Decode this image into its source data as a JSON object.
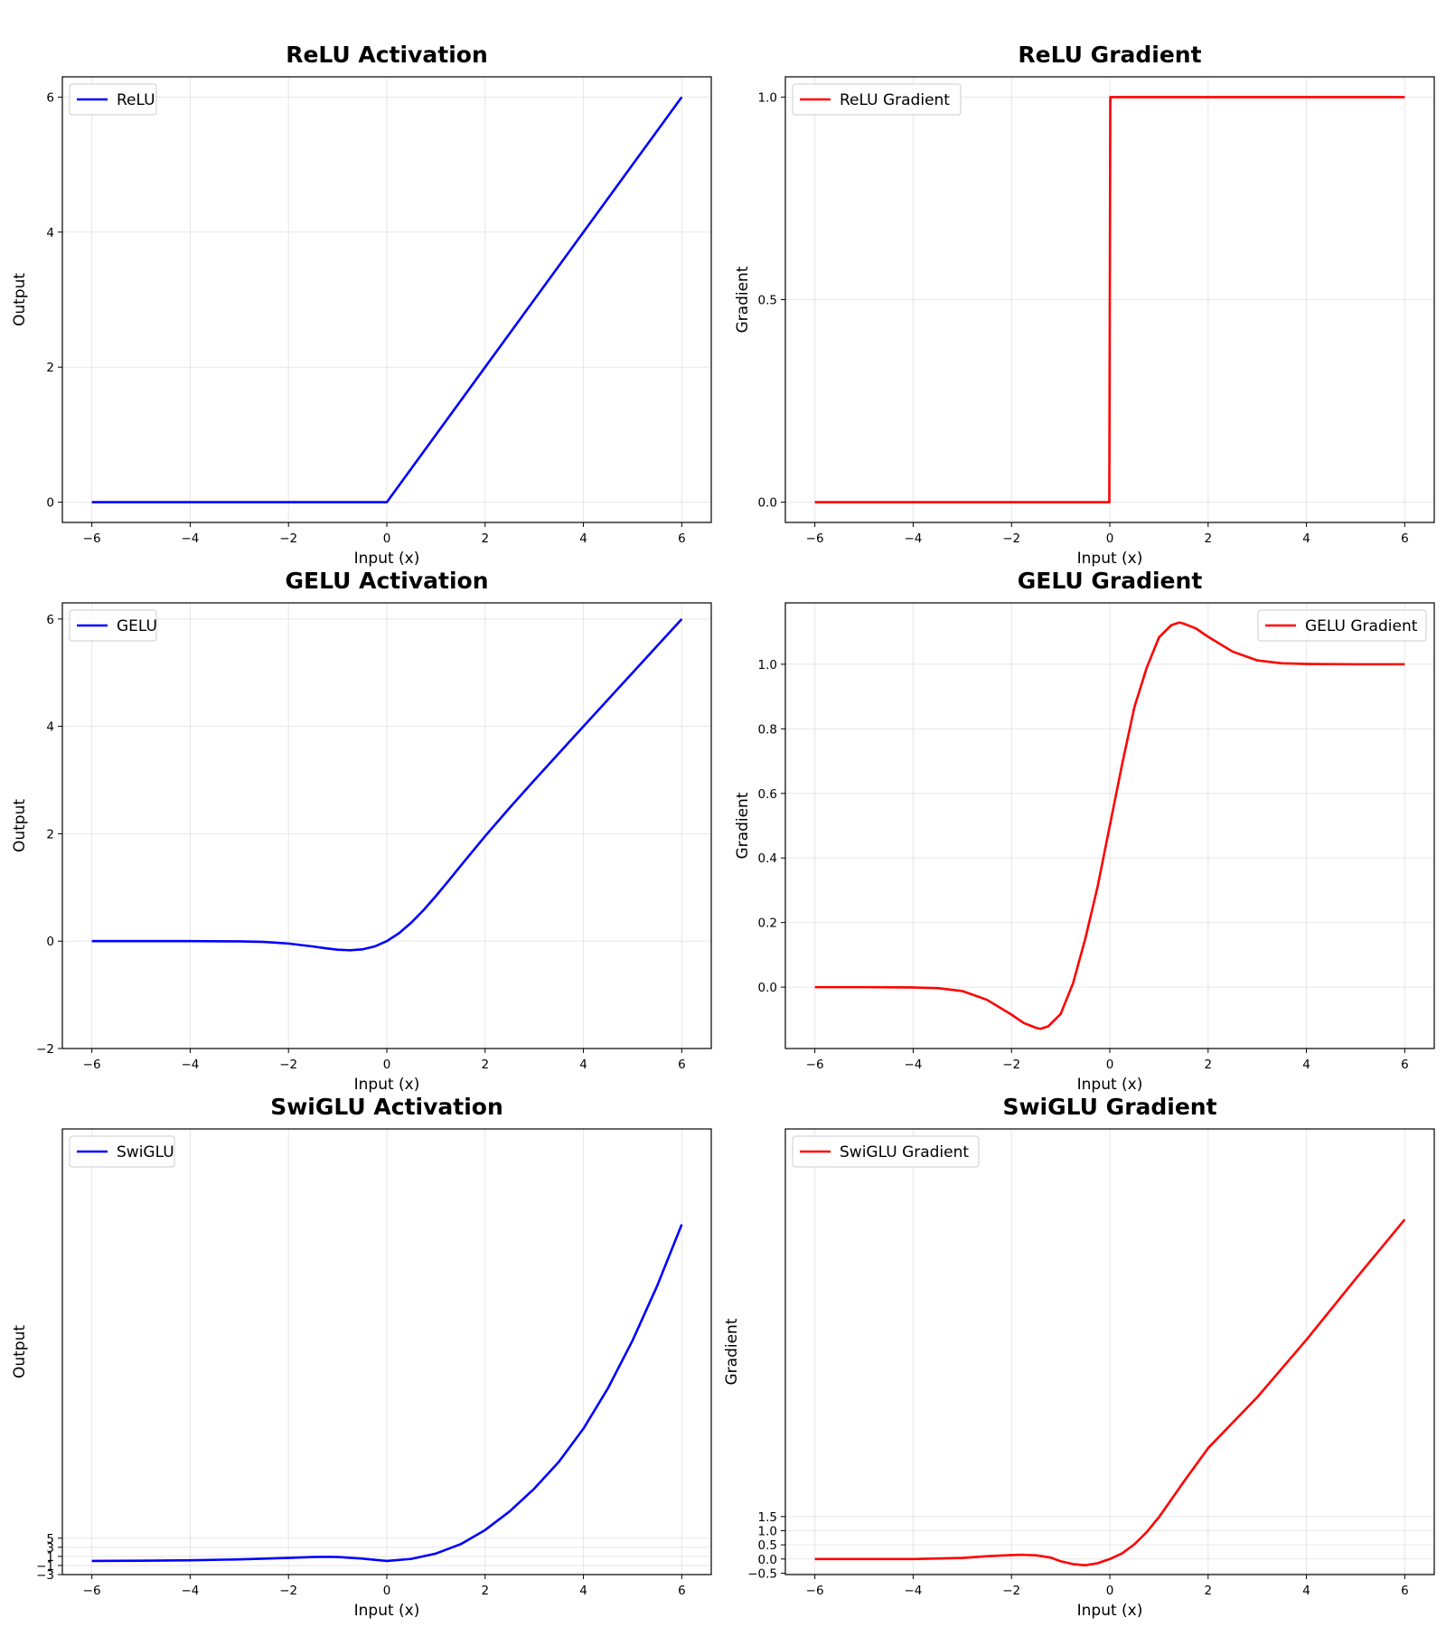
{
  "chart_data": [
    {
      "type": "line",
      "title": "ReLU Activation",
      "xlabel": "Input (x)",
      "ylabel": "Output",
      "xlim": [
        -6.6,
        6.6
      ],
      "ylim": [
        -0.3,
        6.3
      ],
      "xticks": [
        -6,
        -4,
        -2,
        0,
        2,
        4,
        6
      ],
      "xtick_labels": [
        "−6",
        "−4",
        "−2",
        "0",
        "2",
        "4",
        "6"
      ],
      "yticks": [
        0,
        2,
        4,
        6
      ],
      "ytick_labels": [
        "0",
        "2",
        "4",
        "6"
      ],
      "grid": true,
      "legend_position": "upper-left",
      "series": [
        {
          "name": "ReLU",
          "color": "#0000ff",
          "x": [
            -6,
            -4,
            -2,
            0,
            2,
            4,
            6
          ],
          "y": [
            0,
            0,
            0,
            0,
            2,
            4,
            6
          ]
        }
      ]
    },
    {
      "type": "line",
      "title": "ReLU Gradient",
      "xlabel": "Input (x)",
      "ylabel": "Gradient",
      "xlim": [
        -6.6,
        6.6
      ],
      "ylim": [
        -0.05,
        1.05
      ],
      "xticks": [
        -6,
        -4,
        -2,
        0,
        2,
        4,
        6
      ],
      "xtick_labels": [
        "−6",
        "−4",
        "−2",
        "0",
        "2",
        "4",
        "6"
      ],
      "yticks": [
        0.0,
        0.5,
        1.0
      ],
      "ytick_labels": [
        "0.0",
        "0.5",
        "1.0"
      ],
      "grid": true,
      "legend_position": "upper-left",
      "series": [
        {
          "name": "ReLU Gradient",
          "color": "#ff0000",
          "x": [
            -6,
            -0.01,
            0.01,
            6
          ],
          "y": [
            0,
            0,
            1,
            1
          ]
        }
      ]
    },
    {
      "type": "line",
      "title": "GELU Activation",
      "xlabel": "Input (x)",
      "ylabel": "Output",
      "xlim": [
        -6.6,
        6.6
      ],
      "ylim": [
        -2.0,
        6.3
      ],
      "xticks": [
        -6,
        -4,
        -2,
        0,
        2,
        4,
        6
      ],
      "xtick_labels": [
        "−6",
        "−4",
        "−2",
        "0",
        "2",
        "4",
        "6"
      ],
      "yticks": [
        -2,
        0,
        2,
        4,
        6
      ],
      "ytick_labels": [
        "−2",
        "0",
        "2",
        "4",
        "6"
      ],
      "grid": true,
      "legend_position": "upper-left",
      "series": [
        {
          "name": "GELU",
          "color": "#0000ff",
          "x": [
            -6,
            -5,
            -4,
            -3,
            -2.5,
            -2,
            -1.5,
            -1.25,
            -1,
            -0.75,
            -0.5,
            -0.25,
            0,
            0.25,
            0.5,
            0.75,
            1,
            1.25,
            1.5,
            2,
            2.5,
            3,
            4,
            5,
            6
          ],
          "y": [
            0,
            0,
            0,
            -0.004,
            -0.015,
            -0.045,
            -0.1,
            -0.132,
            -0.159,
            -0.17,
            -0.154,
            -0.1,
            0,
            0.149,
            0.346,
            0.58,
            0.841,
            1.118,
            1.4,
            1.955,
            2.485,
            2.996,
            4.0,
            5.0,
            6.0
          ]
        }
      ]
    },
    {
      "type": "line",
      "title": "GELU Gradient",
      "xlabel": "Input (x)",
      "ylabel": "Gradient",
      "xlim": [
        -6.6,
        6.6
      ],
      "ylim": [
        -0.19,
        1.19
      ],
      "xticks": [
        -6,
        -4,
        -2,
        0,
        2,
        4,
        6
      ],
      "xtick_labels": [
        "−6",
        "−4",
        "−2",
        "0",
        "2",
        "4",
        "6"
      ],
      "yticks": [
        0.0,
        0.2,
        0.4,
        0.6,
        0.8,
        1.0
      ],
      "ytick_labels": [
        "0.0",
        "0.2",
        "0.4",
        "0.6",
        "0.8",
        "1.0"
      ],
      "grid": true,
      "legend_position": "upper-right",
      "series": [
        {
          "name": "GELU Gradient",
          "color": "#ff0000",
          "x": [
            -6,
            -5,
            -4,
            -3.5,
            -3,
            -2.5,
            -2,
            -1.75,
            -1.5,
            -1.41,
            -1.25,
            -1,
            -0.75,
            -0.5,
            -0.25,
            0,
            0.25,
            0.5,
            0.75,
            1,
            1.25,
            1.41,
            1.5,
            1.75,
            2,
            2.5,
            3,
            3.5,
            4,
            5,
            6
          ],
          "y": [
            0,
            0,
            -0.001,
            -0.003,
            -0.012,
            -0.039,
            -0.085,
            -0.111,
            -0.126,
            -0.129,
            -0.121,
            -0.083,
            0.011,
            0.149,
            0.31,
            0.5,
            0.69,
            0.867,
            0.989,
            1.083,
            1.121,
            1.129,
            1.126,
            1.111,
            1.085,
            1.039,
            1.012,
            1.003,
            1.001,
            1.0,
            1.0
          ]
        }
      ]
    },
    {
      "type": "line",
      "title": "SwiGLU Activation",
      "xlabel": "Input (x)",
      "ylabel": "Output",
      "xlim": [
        -6.6,
        6.6
      ],
      "ylim": [
        -3.0,
        95.0
      ],
      "xticks": [
        -6,
        -4,
        -2,
        0,
        2,
        4,
        6
      ],
      "xtick_labels": [
        "−6",
        "−4",
        "−2",
        "0",
        "2",
        "4",
        "6"
      ],
      "yticks": [
        -3,
        -1,
        1,
        3,
        5
      ],
      "ytick_labels": [
        "−3",
        "−1",
        "1",
        "3",
        "5"
      ],
      "grid": true,
      "legend_position": "upper-left",
      "series": [
        {
          "name": "SwiGLU",
          "color": "#0000ff",
          "x": [
            -6,
            -5,
            -4,
            -3,
            -2,
            -1.5,
            -1.2,
            -1,
            -0.5,
            0,
            0.5,
            1,
            1.5,
            2,
            2.5,
            3,
            3.5,
            4,
            4.5,
            5,
            5.5,
            6
          ],
          "y": [
            0.0,
            0.04,
            0.14,
            0.34,
            0.67,
            0.86,
            0.9,
            0.86,
            0.52,
            0.0,
            0.45,
            1.63,
            3.67,
            6.8,
            10.9,
            15.9,
            21.8,
            29.1,
            38.0,
            48.5,
            60.5,
            74.0
          ]
        }
      ]
    },
    {
      "type": "line",
      "title": "SwiGLU Gradient",
      "xlabel": "Input (x)",
      "ylabel": "Gradient",
      "xlim": [
        -6.6,
        6.6
      ],
      "ylim": [
        -0.55,
        15.2
      ],
      "xticks": [
        -6,
        -4,
        -2,
        0,
        2,
        4,
        6
      ],
      "xtick_labels": [
        "−6",
        "−4",
        "−2",
        "0",
        "2",
        "4",
        "6"
      ],
      "yticks": [
        -0.5,
        0.0,
        0.5,
        1.0,
        1.5
      ],
      "ytick_labels": [
        "−0.5",
        "0.0",
        "0.5",
        "1.0",
        "1.5"
      ],
      "grid": true,
      "legend_position": "upper-left",
      "series": [
        {
          "name": "SwiGLU Gradient",
          "color": "#ff0000",
          "x": [
            -6,
            -5,
            -4,
            -3,
            -2.5,
            -2,
            -1.8,
            -1.5,
            -1.2,
            -1,
            -0.75,
            -0.5,
            -0.25,
            0,
            0.25,
            0.5,
            0.75,
            1,
            1.5,
            2,
            3,
            4,
            5,
            6
          ],
          "y": [
            0,
            0,
            0.0,
            0.04,
            0.1,
            0.14,
            0.15,
            0.13,
            0.05,
            -0.08,
            -0.18,
            -0.22,
            -0.15,
            0.0,
            0.2,
            0.52,
            0.95,
            1.48,
            2.72,
            3.92,
            5.72,
            7.75,
            9.9,
            12.0
          ]
        }
      ]
    }
  ]
}
